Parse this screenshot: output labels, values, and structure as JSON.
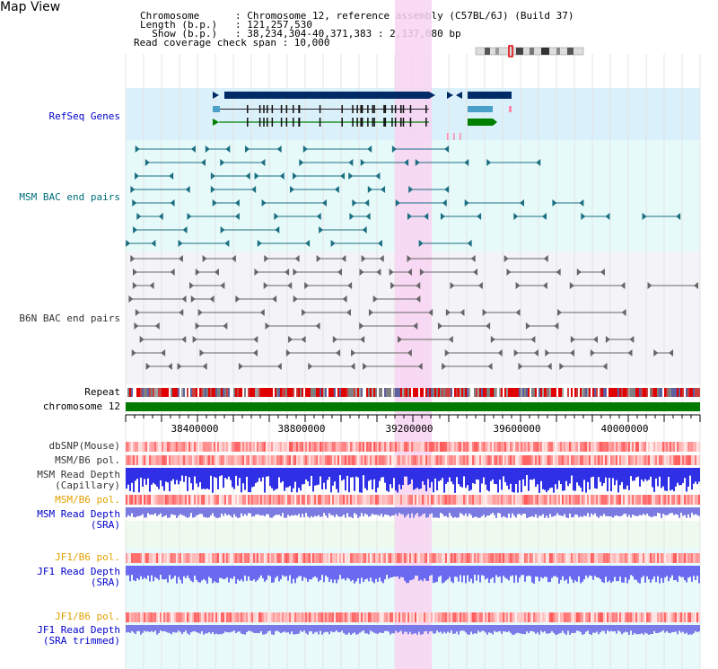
{
  "title": "Map View",
  "header": {
    "line1": "Chromosome      : Chromosome 12, reference assembly (C57BL/6J) (Build 37)",
    "line2": "Length (b.p.)   : 121,257,530",
    "line3": "  Show (b.p.)   : 38,234,304-40,371,383 : 2,137,080 bp",
    "line4": "Read coverage check span : 10,000"
  },
  "tracks": {
    "refseq": "RefSeq Genes",
    "msm_bac": "MSM BAC end pairs",
    "b6n_bac": "B6N BAC end pairs",
    "repeat": "Repeat",
    "chromosome": "chromosome 12",
    "dbsnp": "dbSNP(Mouse)",
    "msm_b6_pol_1": "MSM/B6 pol.",
    "msm_read_depth_cap_1": "MSM Read Depth",
    "msm_read_depth_cap_2": "(Capillary)",
    "msm_b6_pol_2": "MSM/B6 pol.",
    "msm_read_depth_sra_1": "MSM Read Depth",
    "msm_read_depth_sra_2": "(SRA)",
    "jf1_b6_pol_1": "JF1/B6 pol.",
    "jf1_read_depth_sra_1": "JF1 Read Depth",
    "jf1_read_depth_sra_2": "(SRA)",
    "jf1_b6_pol_2": "JF1/B6 pol.",
    "jf1_read_depth_trim_1": "JF1 Read Depth",
    "jf1_read_depth_trim_2": "(SRA trimmed)"
  },
  "axis": {
    "ticks": [
      "38400000",
      "38800000",
      "39200000",
      "39600000",
      "40000000"
    ]
  },
  "colors": {
    "refseq_bg": "#daf0fa",
    "msm_bg": "#e6fafa",
    "b6n_bg": "#f4f4f8",
    "highlight": "#f8d4f2",
    "gene_dark": "#002b66",
    "gene_mid": "#4aa0c8",
    "gene_green": "#008000",
    "teal": "#1c6f80",
    "chromosome_bar": "#007a00",
    "depth_blue": "#3a3ae0"
  }
}
